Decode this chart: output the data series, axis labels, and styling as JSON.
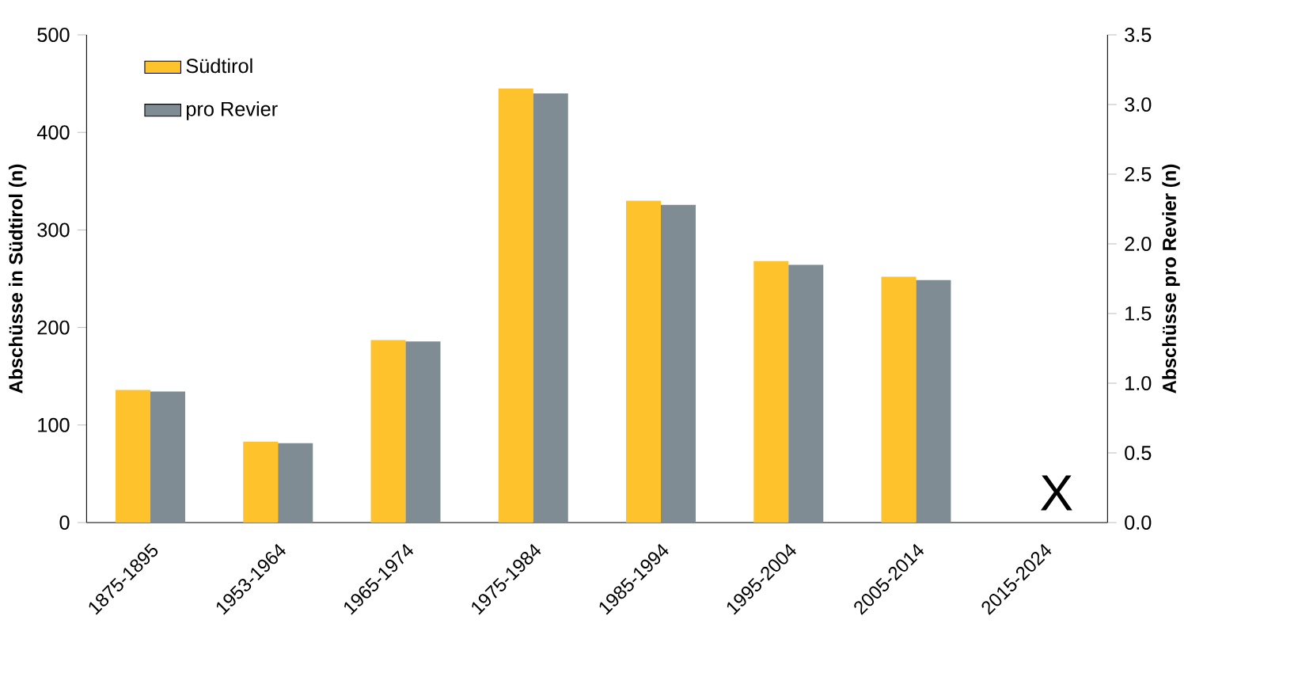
{
  "chart_data": {
    "type": "bar",
    "ylabel": "Abschüsse in Südtirol (n)",
    "y2label": "Abschüsse pro Revier (n)",
    "categories": [
      "1875-1895",
      "1953-1964",
      "1965-1974",
      "1975-1984",
      "1985-1994",
      "1995-2004",
      "2005-2014",
      "2015-2024"
    ],
    "series": [
      {
        "name": "Südtirol",
        "color": "#fec22c",
        "values": [
          136,
          83,
          187,
          445,
          330,
          268,
          252,
          null
        ]
      },
      {
        "name": "pro Revier",
        "color": "#7f8c94",
        "axis": "y2",
        "values": [
          0.94,
          0.57,
          1.3,
          3.08,
          2.28,
          1.85,
          1.74,
          null
        ]
      }
    ],
    "ylim": [
      0,
      500
    ],
    "yticks": [
      0,
      100,
      200,
      300,
      400,
      500
    ],
    "y2lim": [
      0,
      3.5
    ],
    "y2ticks": [
      {
        "value": 0,
        "label": "0.0"
      },
      {
        "value": 0.5,
        "label": "0.5"
      },
      {
        "value": 1,
        "label": "1.0"
      },
      {
        "value": 1.5,
        "label": "1.5"
      },
      {
        "value": 2,
        "label": "2.0"
      },
      {
        "value": 2.5,
        "label": "2.5"
      },
      {
        "value": 3,
        "label": "3.0"
      },
      {
        "value": 3.5,
        "label": "3.5"
      }
    ],
    "annotations": [
      "X"
    ],
    "legend": "top left",
    "grid": false
  }
}
